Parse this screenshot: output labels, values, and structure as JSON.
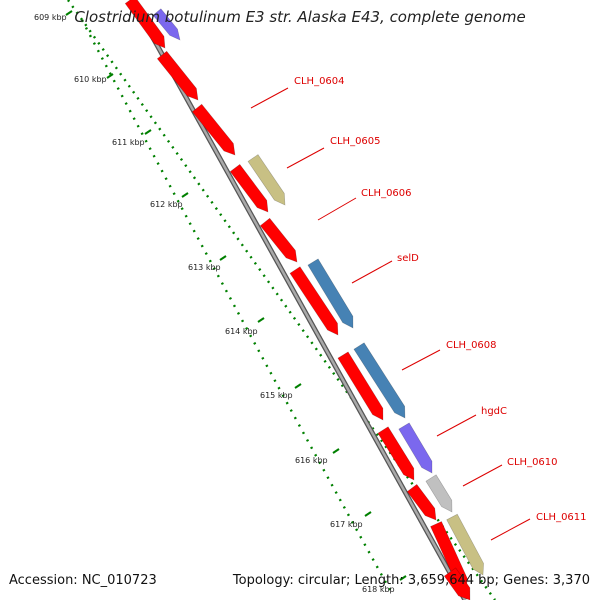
{
  "title": "Clostridium botulinum E3 str. Alaska E43, complete genome",
  "footer": {
    "accession": "Accession: NC_010723",
    "topology": "Topology: circular; Length: 3,659,644 bp; Genes: 3,370"
  },
  "colors": {
    "cds": "#ff0000",
    "olive": "#c8c084",
    "steel": "#4682b4",
    "purple": "#7b68ee",
    "gray": "#c0c0c0",
    "backbone": "#888888",
    "tick": "#008000",
    "label": "#dd0000"
  },
  "ticks": [
    "609 kbp",
    "610 kbp",
    "611 kbp",
    "612 kbp",
    "613 kbp",
    "614 kbp",
    "615 kbp",
    "616 kbp",
    "617 kbp",
    "618 kbp"
  ],
  "gene_labels": [
    "CLH_0604",
    "CLH_0605",
    "CLH_0606",
    "selD",
    "CLH_0608",
    "hgdC",
    "CLH_0610",
    "CLH_0611"
  ]
}
